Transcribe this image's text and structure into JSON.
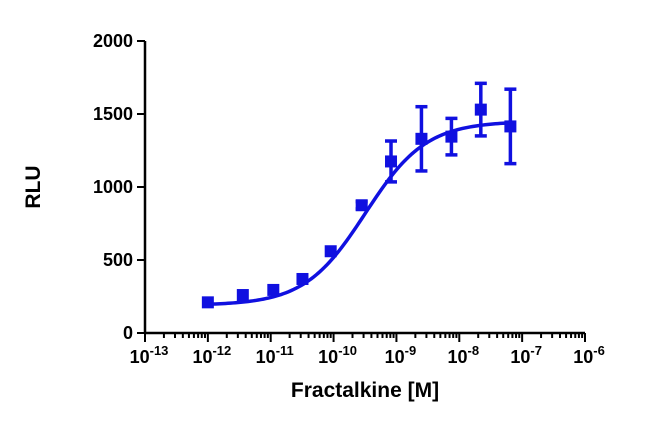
{
  "chart_data": {
    "type": "scatter",
    "title": "",
    "xlabel": "Fractalkine [M]",
    "ylabel": "RLU",
    "x_scale": "log",
    "xlim": [
      1e-13,
      1e-06
    ],
    "ylim": [
      0,
      2000
    ],
    "x_ticks": [
      {
        "value": 1e-13,
        "base": "10",
        "exp": "-13"
      },
      {
        "value": 1e-12,
        "base": "10",
        "exp": "-12"
      },
      {
        "value": 1e-11,
        "base": "10",
        "exp": "-11"
      },
      {
        "value": 1e-10,
        "base": "10",
        "exp": "-10"
      },
      {
        "value": 1e-09,
        "base": "10",
        "exp": "-9"
      },
      {
        "value": 1e-08,
        "base": "10",
        "exp": "-8"
      },
      {
        "value": 1e-07,
        "base": "10",
        "exp": "-7"
      },
      {
        "value": 1e-06,
        "base": "10",
        "exp": "-6"
      }
    ],
    "y_ticks": [
      {
        "value": 0,
        "label": "0"
      },
      {
        "value": 500,
        "label": "500"
      },
      {
        "value": 1000,
        "label": "1000"
      },
      {
        "value": 1500,
        "label": "1500"
      },
      {
        "value": 2000,
        "label": "2000"
      }
    ],
    "grid": false,
    "color": "#1010e0",
    "marker": "square",
    "points": [
      {
        "x": 1e-12,
        "y": 210,
        "err": 0
      },
      {
        "x": 3.6e-12,
        "y": 260,
        "err": 0
      },
      {
        "x": 1.1e-11,
        "y": 295,
        "err": 0
      },
      {
        "x": 3.2e-11,
        "y": 370,
        "err": 0
      },
      {
        "x": 9e-11,
        "y": 560,
        "err": 0
      },
      {
        "x": 2.8e-10,
        "y": 875,
        "err": 25
      },
      {
        "x": 8.2e-10,
        "y": 1175,
        "err": 140
      },
      {
        "x": 2.5e-09,
        "y": 1330,
        "err": 220
      },
      {
        "x": 7.5e-09,
        "y": 1345,
        "err": 125
      },
      {
        "x": 2.2e-08,
        "y": 1530,
        "err": 180
      },
      {
        "x": 6.5e-08,
        "y": 1415,
        "err": 255
      }
    ],
    "fit_curve": {
      "model": "4PL",
      "bottom": 190,
      "top": 1450,
      "ec50": 3.2e-10,
      "hill": 0.9,
      "x_range": [
        1e-12,
        6.5e-08
      ]
    }
  }
}
